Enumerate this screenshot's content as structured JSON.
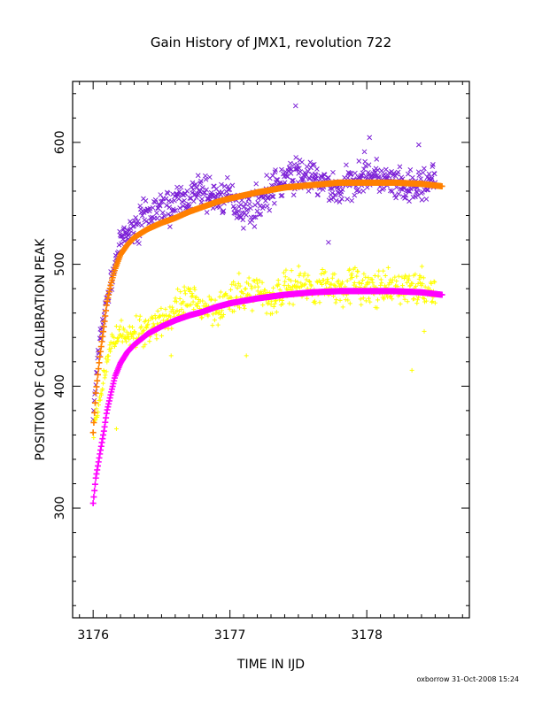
{
  "chart_data": {
    "type": "scatter",
    "title": "Gain History of JMX1, revolution 722",
    "xlabel": "TIME IN IJD",
    "ylabel": "POSITION OF Cd CALIBRATION PEAK",
    "xlim": [
      3175.85,
      3178.75
    ],
    "ylim": [
      210,
      650
    ],
    "x_ticks": [
      3176,
      3177,
      3178
    ],
    "y_ticks": [
      300,
      400,
      500,
      600
    ],
    "grid": false,
    "legend": "none",
    "series": [
      {
        "marker": "x",
        "color": "#7b1fd6",
        "x": [
          3176.0,
          3176.05,
          3176.1,
          3176.15,
          3176.2,
          3176.3,
          3176.4,
          3176.5,
          3176.6,
          3176.7,
          3176.8,
          3176.9,
          3177.0,
          3177.1,
          3177.2,
          3177.3,
          3177.4,
          3177.5,
          3177.6,
          3177.7,
          3177.8,
          3177.9,
          3178.0,
          3178.1,
          3178.2,
          3178.3,
          3178.4,
          3178.5
        ],
        "values": [
          375,
          440,
          470,
          495,
          520,
          530,
          540,
          545,
          550,
          555,
          560,
          555,
          555,
          545,
          550,
          560,
          570,
          575,
          570,
          565,
          560,
          570,
          575,
          570,
          565,
          560,
          565,
          570
        ],
        "outliers": [
          [
            3177.48,
            630
          ],
          [
            3177.72,
            518
          ],
          [
            3178.02,
            604
          ],
          [
            3178.38,
            598
          ]
        ]
      },
      {
        "marker": "+",
        "color": "#ffff00",
        "x": [
          3176.0,
          3176.05,
          3176.1,
          3176.15,
          3176.2,
          3176.3,
          3176.4,
          3176.5,
          3176.6,
          3176.7,
          3176.8,
          3176.9,
          3177.0,
          3177.1,
          3177.2,
          3177.3,
          3177.4,
          3177.5,
          3177.6,
          3177.7,
          3177.8,
          3177.9,
          3178.0,
          3178.1,
          3178.2,
          3178.3,
          3178.4,
          3178.5
        ],
        "values": [
          360,
          390,
          420,
          440,
          445,
          440,
          450,
          455,
          460,
          470,
          465,
          465,
          470,
          475,
          480,
          470,
          480,
          485,
          480,
          485,
          480,
          485,
          480,
          478,
          480,
          482,
          480,
          478
        ],
        "outliers": [
          [
            3176.17,
            365
          ],
          [
            3176.57,
            425
          ],
          [
            3177.12,
            425
          ],
          [
            3178.33,
            413
          ],
          [
            3178.42,
            445
          ]
        ]
      },
      {
        "marker": "+",
        "color": "#ff8000",
        "x": [
          3176.0,
          3176.02,
          3176.05,
          3176.08,
          3176.1,
          3176.13,
          3176.16,
          3176.2,
          3176.25,
          3176.3,
          3176.4,
          3176.5,
          3176.6,
          3176.7,
          3176.8,
          3176.9,
          3177.0,
          3177.2,
          3177.4,
          3177.6,
          3177.8,
          3178.0,
          3178.2,
          3178.4,
          3178.55
        ],
        "values": [
          362,
          395,
          425,
          450,
          468,
          484,
          496,
          508,
          516,
          522,
          529,
          534,
          538,
          543,
          547,
          551,
          554,
          559,
          563,
          565,
          567,
          567,
          567,
          566,
          564
        ]
      },
      {
        "marker": "+",
        "color": "#ff00ff",
        "x": [
          3176.0,
          3176.02,
          3176.05,
          3176.08,
          3176.1,
          3176.13,
          3176.16,
          3176.2,
          3176.25,
          3176.3,
          3176.4,
          3176.5,
          3176.6,
          3176.7,
          3176.8,
          3176.9,
          3177.0,
          3177.2,
          3177.4,
          3177.6,
          3177.8,
          3178.0,
          3178.2,
          3178.4,
          3178.55
        ],
        "values": [
          304,
          325,
          345,
          364,
          379,
          394,
          408,
          419,
          428,
          434,
          443,
          449,
          454,
          458,
          461,
          465,
          468,
          472,
          475,
          477,
          478,
          478,
          478,
          477,
          475
        ]
      }
    ]
  },
  "footer": {
    "credit": "oxborrow 31-Oct-2008 15:24"
  }
}
